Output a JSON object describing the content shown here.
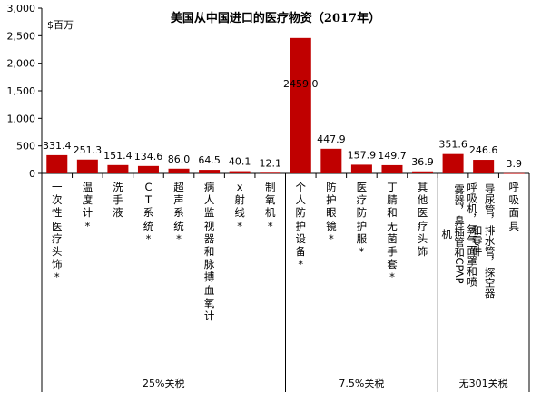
{
  "chart_data": {
    "type": "bar",
    "title": "美国从中国进口的医疗物资（2017年）",
    "unit": "$百万",
    "ylim": [
      0,
      3000
    ],
    "yticks": [
      "0",
      "500",
      "1,000",
      "1,500",
      "2,000",
      "2,500",
      "3,000"
    ],
    "grid": false,
    "bar_color": "#C00000",
    "categories": [
      "一次性医疗头饰*",
      "温度计*",
      "洗手液",
      "CT系统*",
      "超声系统*",
      "病人监视器和脉搏血氧计",
      "x射线*",
      "制氧机*",
      "个人防护设备*",
      "防护眼镜*",
      "医疗防护服*",
      "丁腈和无菌手套*",
      "其他医疗头饰",
      "呼吸机，氧气面罩和喷雾器，鼻插管和CPAP机",
      "导尿管，排水管，探空器和零件",
      "呼吸面具"
    ],
    "values": [
      331.4,
      251.3,
      151.4,
      134.6,
      86.0,
      64.5,
      40.1,
      12.1,
      2459.0,
      447.9,
      157.9,
      149.7,
      36.9,
      351.6,
      246.6,
      3.9
    ],
    "value_labels": [
      "331.4",
      "251.3",
      "151.4",
      "134.6",
      "86.0",
      "64.5",
      "40.1",
      "12.1",
      "2459.0",
      "447.9",
      "157.9",
      "149.7",
      "36.9",
      "351.6",
      "246.6",
      "3.9"
    ],
    "groups": [
      {
        "label": "25%关税",
        "start": 0,
        "end": 7
      },
      {
        "label": "7.5%关税",
        "start": 8,
        "end": 12
      },
      {
        "label": "无301关税",
        "start": 13,
        "end": 15
      }
    ]
  }
}
